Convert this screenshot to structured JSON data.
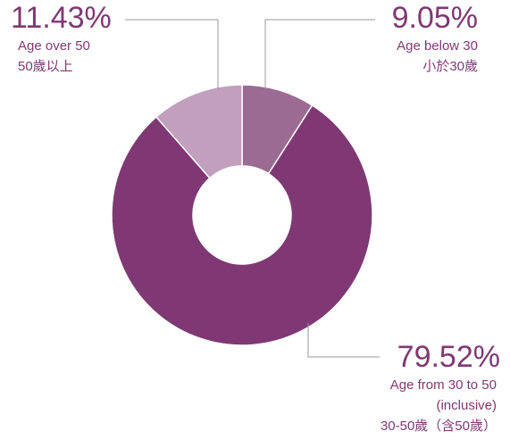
{
  "chart_data": {
    "type": "donut",
    "categories": [
      [
        "Age below 30",
        "小於30歲"
      ],
      [
        "Age from 30 to 50",
        "(inclusive)",
        "30-50歲（含50歲）"
      ],
      [
        "Age over 50",
        "50歲以上"
      ]
    ],
    "values": [
      9.05,
      79.52,
      11.43
    ],
    "value_labels": [
      "9.05%",
      "79.52%",
      "11.43%"
    ],
    "colors": [
      "#9c6b93",
      "#7f3873",
      "#c19fbd"
    ]
  }
}
